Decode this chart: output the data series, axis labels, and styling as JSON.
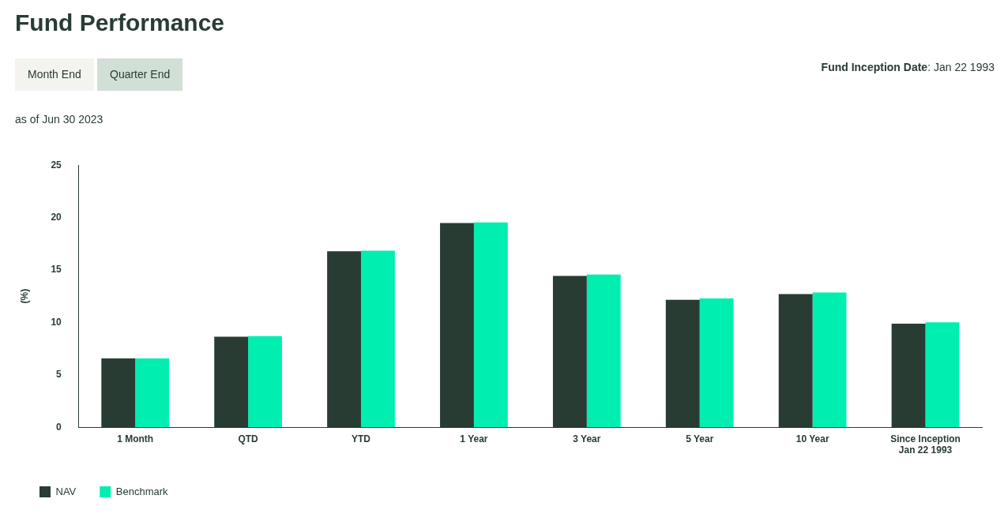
{
  "chart_data": {
    "type": "bar",
    "title": "Fund Performance",
    "subtitle": "as of Jun 30 2023",
    "ylabel": "(%)",
    "categories": [
      "1 Month",
      "QTD",
      "YTD",
      "1 Year",
      "3 Year",
      "5 Year",
      "10 Year",
      "Since Inception\nJan 22 1993"
    ],
    "series": [
      {
        "name": "NAV",
        "color": "#283c33",
        "values": [
          6.56,
          8.63,
          16.78,
          19.48,
          14.43,
          12.15,
          12.71,
          9.88
        ]
      },
      {
        "name": "Benchmark",
        "color": "#00efb0",
        "values": [
          6.56,
          8.7,
          16.85,
          19.54,
          14.57,
          12.29,
          12.85,
          10.01
        ]
      }
    ],
    "ylim": [
      0,
      25
    ],
    "yticks": [
      0,
      5,
      10,
      15,
      20,
      25
    ],
    "grid": false,
    "legend": "bottom left",
    "annotations": [
      "Month End",
      "Quarter End",
      "Fund Inception Date: Jan 22 1993"
    ]
  }
}
